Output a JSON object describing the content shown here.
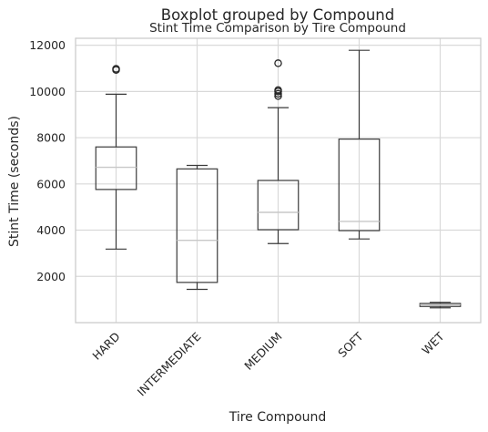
{
  "chart_data": {
    "type": "box",
    "suptitle": "Boxplot grouped by Compound",
    "title": "Stint Time Comparison by Tire Compound",
    "xlabel": "Tire Compound",
    "ylabel": "Stint Time (seconds)",
    "ylim": [
      0,
      12300
    ],
    "yticks": [
      2000,
      4000,
      6000,
      8000,
      10000,
      12000
    ],
    "ytick_labels": [
      "2000",
      "4000",
      "6000",
      "8000",
      "10000",
      "12000"
    ],
    "grid": true,
    "categories": [
      "HARD",
      "INTERMEDIATE",
      "MEDIUM",
      "SOFT",
      "WET"
    ],
    "boxes": [
      {
        "category": "HARD",
        "whislo": 3180,
        "q1": 5760,
        "med": 6720,
        "q3": 7600,
        "whishi": 9880,
        "fliers": [
          10930,
          10980
        ]
      },
      {
        "category": "INTERMEDIATE",
        "whislo": 1440,
        "q1": 1740,
        "med": 3560,
        "q3": 6650,
        "whishi": 6800,
        "fliers": []
      },
      {
        "category": "MEDIUM",
        "whislo": 3420,
        "q1": 4020,
        "med": 4770,
        "q3": 6150,
        "whishi": 9300,
        "fliers": [
          9800,
          9900,
          10000,
          10060,
          11220
        ]
      },
      {
        "category": "SOFT",
        "whislo": 3620,
        "q1": 3980,
        "med": 4380,
        "q3": 7940,
        "whishi": 11780,
        "fliers": []
      },
      {
        "category": "WET",
        "whislo": 640,
        "q1": 700,
        "med": 770,
        "q3": 830,
        "whishi": 880,
        "fliers": []
      }
    ]
  }
}
